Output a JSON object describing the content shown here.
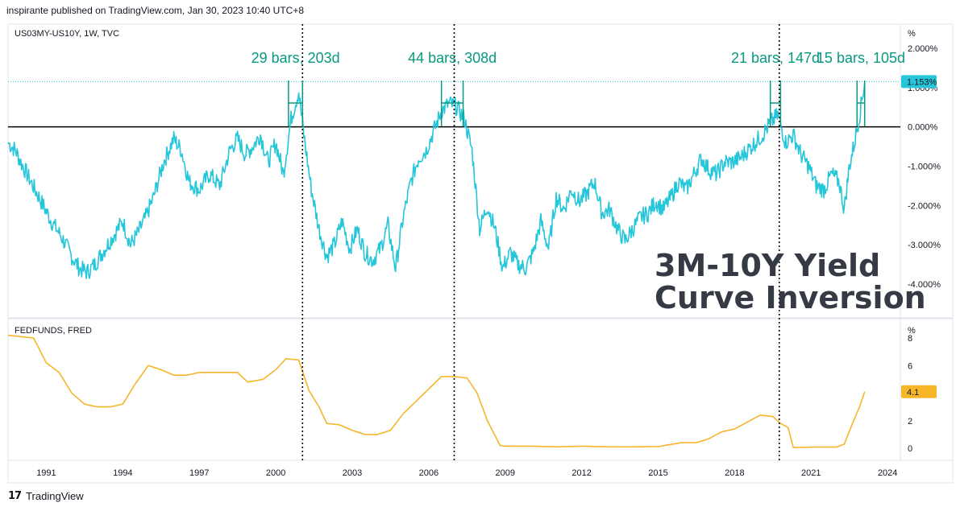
{
  "header": {
    "published": "inspirante published on TradingView.com, Jan 30, 2023 10:40 UTC+8"
  },
  "footer": {
    "brand": "TradingView",
    "logo_glyph": "17"
  },
  "colors": {
    "spread": "#26c6da",
    "fedfunds": "#f7b528",
    "annotation": "#089981",
    "zero_line": "#000000"
  },
  "chart_data": [
    {
      "type": "line",
      "pane_label": "US03MY-US10Y, 1W, TVC",
      "unit_label": "%",
      "ylim": [
        -4.3,
        2.2
      ],
      "y_ticks": [
        {
          "value": 2,
          "label": "2.000%"
        },
        {
          "value": 1,
          "label": "1.000%"
        },
        {
          "value": 0,
          "label": "0.000%"
        },
        {
          "value": -1,
          "label": "-1.000%"
        },
        {
          "value": -2,
          "label": "-2.000%"
        },
        {
          "value": -3,
          "label": "-3.000%"
        },
        {
          "value": -4,
          "label": "-4.000%"
        }
      ],
      "last_value": {
        "value": 1.153,
        "label": "1.153%"
      },
      "title_lines": [
        "3M-10Y Yield",
        "Curve Inversion"
      ],
      "series": [
        {
          "x": [
            1989.5,
            1989.8,
            1990.0,
            1990.4,
            1990.8,
            1991.2,
            1991.6,
            1992.0,
            1992.3,
            1992.6,
            1992.9,
            1993.2,
            1993.6,
            1994.0,
            1994.3,
            1994.6,
            1994.9,
            1995.2,
            1995.6,
            1996.0,
            1996.3,
            1996.6,
            1997.0,
            1997.4,
            1997.8,
            1998.2,
            1998.5,
            1998.8,
            1999.1,
            1999.4,
            1999.7,
            2000.0,
            2000.3,
            2000.6,
            2000.9,
            2001.1,
            2001.4,
            2001.7,
            2002.0,
            2002.3,
            2002.6,
            2002.9,
            2003.2,
            2003.5,
            2003.8,
            2004.1,
            2004.4,
            2004.7,
            2005.0,
            2005.3,
            2005.6,
            2005.9,
            2006.2,
            2006.5,
            2006.8,
            2007.1,
            2007.4,
            2007.7,
            2008.0,
            2008.3,
            2008.6,
            2008.9,
            2009.2,
            2009.5,
            2009.8,
            2010.1,
            2010.4,
            2010.7,
            2011.0,
            2011.3,
            2011.6,
            2011.9,
            2012.2,
            2012.5,
            2012.8,
            2013.1,
            2013.4,
            2013.7,
            2014.0,
            2014.3,
            2014.6,
            2014.9,
            2015.2,
            2015.5,
            2015.8,
            2016.1,
            2016.4,
            2016.7,
            2017.0,
            2017.3,
            2017.6,
            2017.9,
            2018.2,
            2018.5,
            2018.8,
            2019.1,
            2019.4,
            2019.7,
            2020.0,
            2020.3,
            2020.6,
            2020.9,
            2021.2,
            2021.5,
            2021.8,
            2022.1,
            2022.3,
            2022.5,
            2022.7,
            2022.9,
            2023.1
          ],
          "values": [
            -0.4,
            -0.6,
            -0.9,
            -1.4,
            -1.9,
            -2.4,
            -2.8,
            -3.3,
            -3.6,
            -3.7,
            -3.5,
            -3.2,
            -2.8,
            -2.4,
            -3.0,
            -2.7,
            -2.3,
            -1.8,
            -0.9,
            -0.3,
            -0.6,
            -1.4,
            -1.6,
            -1.2,
            -1.5,
            -0.6,
            -0.3,
            -0.7,
            -0.5,
            -0.2,
            -0.9,
            -0.4,
            -1.2,
            0.2,
            0.9,
            -0.2,
            -1.6,
            -2.6,
            -3.3,
            -3.0,
            -2.4,
            -3.1,
            -2.6,
            -3.2,
            -3.4,
            -3.1,
            -2.5,
            -3.6,
            -2.3,
            -1.4,
            -0.8,
            -0.6,
            -0.1,
            0.4,
            0.6,
            0.5,
            0.2,
            -0.6,
            -2.6,
            -2.0,
            -2.6,
            -3.6,
            -3.2,
            -3.5,
            -3.6,
            -3.2,
            -2.4,
            -3.1,
            -1.8,
            -2.1,
            -1.6,
            -1.9,
            -1.7,
            -1.4,
            -2.2,
            -2.1,
            -2.6,
            -2.9,
            -2.6,
            -2.3,
            -2.2,
            -1.9,
            -2.1,
            -1.8,
            -1.4,
            -1.6,
            -1.2,
            -0.8,
            -1.1,
            -1.2,
            -0.9,
            -0.9,
            -0.8,
            -0.6,
            -0.4,
            -0.2,
            0.1,
            0.3,
            -0.4,
            -0.2,
            -0.7,
            -1.0,
            -1.5,
            -1.6,
            -1.2,
            -1.4,
            -2.1,
            -1.0,
            -0.4,
            0.3,
            1.15
          ]
        }
      ],
      "annotations": [
        {
          "label": "29 bars, 203d",
          "x0": 2000.5,
          "x1": 2001.05
        },
        {
          "label": "44 bars, 308d",
          "x0": 2006.5,
          "x1": 2007.35
        },
        {
          "label": "21 bars, 147d",
          "x0": 2019.4,
          "x1": 2019.8
        },
        {
          "label": "15 bars, 105d",
          "x0": 2022.8,
          "x1": 2023.1
        }
      ]
    },
    {
      "type": "line",
      "pane_label": "FEDFUNDS, FRED",
      "unit_label": "%",
      "ylim": [
        -0.5,
        8.5
      ],
      "y_ticks": [
        {
          "value": 8,
          "label": "8"
        },
        {
          "value": 6,
          "label": "6"
        },
        {
          "value": 4,
          "label": "4"
        },
        {
          "value": 2,
          "label": "2"
        },
        {
          "value": 0,
          "label": "0"
        }
      ],
      "last_value": {
        "value": 4.1,
        "label": "4.1"
      },
      "series": [
        {
          "x": [
            1989.5,
            1990.5,
            1991.0,
            1991.5,
            1992.0,
            1992.5,
            1993.0,
            1993.5,
            1994.0,
            1994.5,
            1995.0,
            1995.5,
            1996.0,
            1996.5,
            1997.0,
            1997.5,
            1998.0,
            1998.5,
            1998.9,
            1999.5,
            2000.0,
            2000.4,
            2000.9,
            2001.3,
            2001.7,
            2002.0,
            2002.5,
            2003.0,
            2003.5,
            2004.0,
            2004.5,
            2005.0,
            2005.5,
            2006.0,
            2006.5,
            2007.0,
            2007.5,
            2007.9,
            2008.3,
            2008.8,
            2009.0,
            2010.0,
            2011.0,
            2012.0,
            2013.0,
            2014.0,
            2015.0,
            2015.9,
            2016.5,
            2017.0,
            2017.5,
            2018.0,
            2018.5,
            2019.0,
            2019.5,
            2019.8,
            2020.1,
            2020.3,
            2021.0,
            2021.5,
            2022.0,
            2022.3,
            2022.6,
            2022.9,
            2023.1
          ],
          "values": [
            8.2,
            8.0,
            6.2,
            5.5,
            4.0,
            3.2,
            3.0,
            3.0,
            3.2,
            4.7,
            6.0,
            5.7,
            5.3,
            5.3,
            5.5,
            5.5,
            5.5,
            5.5,
            4.8,
            5.0,
            5.7,
            6.5,
            6.4,
            4.2,
            3.0,
            1.8,
            1.7,
            1.3,
            1.0,
            1.0,
            1.3,
            2.5,
            3.4,
            4.3,
            5.2,
            5.2,
            5.1,
            4.0,
            2.0,
            0.2,
            0.15,
            0.15,
            0.1,
            0.15,
            0.1,
            0.1,
            0.12,
            0.4,
            0.4,
            0.7,
            1.2,
            1.4,
            1.9,
            2.4,
            2.3,
            1.8,
            1.5,
            0.05,
            0.08,
            0.08,
            0.08,
            0.3,
            1.7,
            3.0,
            4.1
          ]
        }
      ]
    },
    {
      "type": "axis",
      "x_ticks": [
        {
          "value": 1991,
          "label": "1991"
        },
        {
          "value": 1994,
          "label": "1994"
        },
        {
          "value": 1997,
          "label": "1997"
        },
        {
          "value": 2000,
          "label": "2000"
        },
        {
          "value": 2003,
          "label": "2003"
        },
        {
          "value": 2006,
          "label": "2006"
        },
        {
          "value": 2009,
          "label": "2009"
        },
        {
          "value": 2012,
          "label": "2012"
        },
        {
          "value": 2015,
          "label": "2015"
        },
        {
          "value": 2018,
          "label": "2018"
        },
        {
          "value": 2021,
          "label": "2021"
        },
        {
          "value": 2024,
          "label": "2024"
        }
      ],
      "xlim": [
        1989.5,
        2024.5
      ],
      "vlines": [
        2001.05,
        2007.0,
        2019.75
      ]
    }
  ]
}
